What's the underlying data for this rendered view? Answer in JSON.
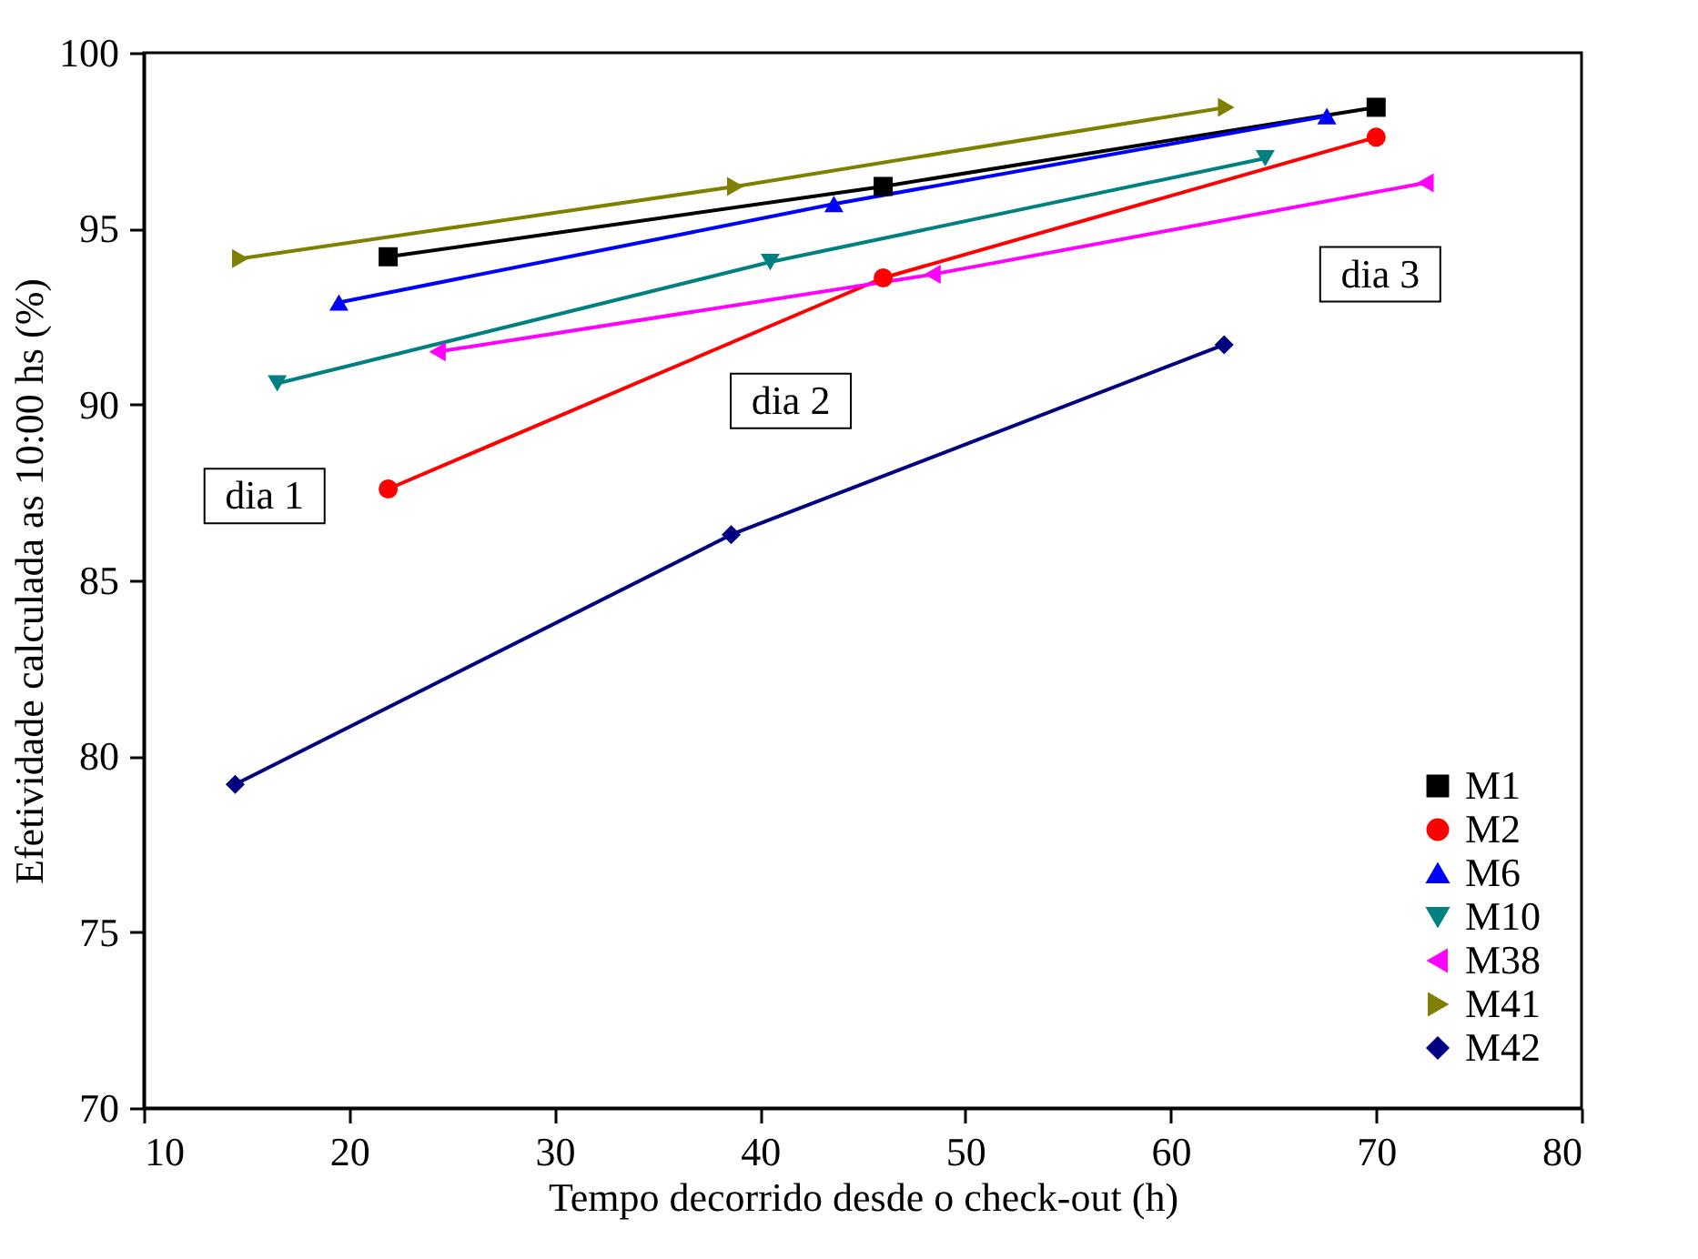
{
  "chart_data": {
    "type": "line",
    "xlabel": "Tempo decorrido desde o check-out (h)",
    "ylabel": "Efetividade calculada as 10:00 hs (%)",
    "xlim": [
      10,
      80
    ],
    "xticks": [
      10,
      20,
      30,
      40,
      50,
      60,
      70,
      80
    ],
    "ylim": [
      70,
      100
    ],
    "yticks": [
      70,
      75,
      80,
      85,
      90,
      95,
      100
    ],
    "grid": false,
    "legend": "bottom right",
    "annotations": [
      "dia 1",
      "dia 2",
      "dia 3"
    ],
    "series": [
      {
        "name": "M1",
        "color": "#000000",
        "marker": "square",
        "x": [
          21.9,
          46.0,
          70.0
        ],
        "values": [
          94.2,
          96.2,
          98.45
        ]
      },
      {
        "name": "M2",
        "color": "#ff0000",
        "marker": "circle",
        "x": [
          21.9,
          46.0,
          70.0
        ],
        "values": [
          87.6,
          93.6,
          97.6
        ]
      },
      {
        "name": "M6",
        "color": "#0000ff",
        "marker": "triangle-up",
        "x": [
          19.5,
          43.6,
          67.6
        ],
        "values": [
          92.9,
          95.7,
          98.2
        ]
      },
      {
        "name": "M10",
        "color": "#008080",
        "marker": "triangle-down",
        "x": [
          16.5,
          40.5,
          64.6
        ],
        "values": [
          90.6,
          94.05,
          97.0
        ]
      },
      {
        "name": "M38",
        "color": "#ff00ff",
        "marker": "triangle-left",
        "x": [
          24.3,
          48.4,
          72.4
        ],
        "values": [
          91.5,
          93.7,
          96.3
        ]
      },
      {
        "name": "M41",
        "color": "#808000",
        "marker": "triangle-right",
        "x": [
          14.7,
          38.8,
          62.7
        ],
        "values": [
          94.15,
          96.2,
          98.45
        ]
      },
      {
        "name": "M42",
        "color": "#000080",
        "marker": "diamond",
        "x": [
          14.45,
          38.6,
          62.6
        ],
        "values": [
          79.2,
          86.3,
          91.7
        ]
      }
    ]
  }
}
